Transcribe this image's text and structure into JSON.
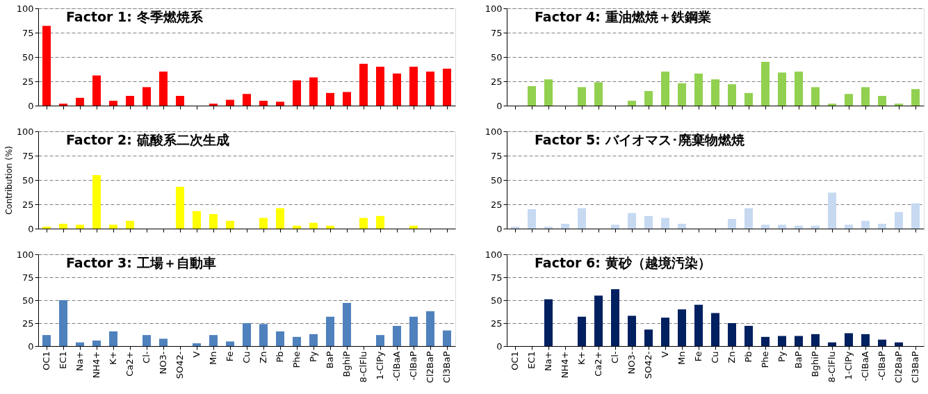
{
  "chart_data": [
    {
      "type": "bar",
      "title": "Factor 1: 冬季燃焼系",
      "categories": [
        "OC1",
        "EC1",
        "Na+",
        "NH4+",
        "K+",
        "Ca2+",
        "Cl-",
        "NO3-",
        "SO42-",
        "V",
        "Mn",
        "Fe",
        "Cu",
        "Zn",
        "Pb",
        "Phe",
        "Py",
        "BaP",
        "BghiP",
        "8-ClFlu",
        "1-ClPy",
        "-ClBaA",
        "-ClBaP",
        "Cl2BaP",
        "Cl3BaP"
      ],
      "series": [
        {
          "color": "#ff0000",
          "values": [
            82,
            2,
            8,
            31,
            5,
            10,
            19,
            35,
            10,
            0,
            2,
            6,
            12,
            5,
            4,
            26,
            29,
            13,
            14,
            43,
            40,
            33,
            40,
            35,
            38
          ]
        }
      ],
      "ylim": [
        0,
        100
      ],
      "yticks": [
        0,
        25,
        50,
        75,
        100
      ],
      "grid": "y",
      "legend": false,
      "tick_labels": "y"
    },
    {
      "type": "bar",
      "title": "Factor 4: 重油燃焼＋鉄鋼業",
      "categories": [
        "OC1",
        "EC1",
        "Na+",
        "NH4+",
        "K+",
        "Ca2+",
        "Cl-",
        "NO3-",
        "SO42-",
        "V",
        "Mn",
        "Fe",
        "Cu",
        "Zn",
        "Pb",
        "Phe",
        "Py",
        "BaP",
        "BghiP",
        "8-ClFlu",
        "1-ClPy",
        "-ClBaA",
        "-ClBaP",
        "Cl2BaP",
        "Cl3BaP"
      ],
      "series": [
        {
          "color": "#92d050",
          "values": [
            0,
            20,
            27,
            0,
            19,
            24,
            0,
            5,
            15,
            35,
            23,
            33,
            27,
            22,
            13,
            45,
            34,
            35,
            19,
            2,
            12,
            19,
            10,
            2,
            17
          ]
        }
      ],
      "ylim": [
        0,
        100
      ],
      "yticks": [
        0,
        25,
        50,
        75,
        100
      ],
      "grid": "y",
      "legend": false,
      "tick_labels": "y"
    },
    {
      "type": "bar",
      "title": "Factor 2: 硫酸系二次生成",
      "ylabel": "Contribution (%)",
      "categories": [
        "OC1",
        "EC1",
        "Na+",
        "NH4+",
        "K+",
        "Ca2+",
        "Cl-",
        "NO3-",
        "SO42-",
        "V",
        "Mn",
        "Fe",
        "Cu",
        "Zn",
        "Pb",
        "Phe",
        "Py",
        "BaP",
        "BghiP",
        "8-ClFlu",
        "1-ClPy",
        "-ClBaA",
        "-ClBaP",
        "Cl2BaP",
        "Cl3BaP"
      ],
      "series": [
        {
          "color": "#ffff00",
          "values": [
            2,
            5,
            4,
            55,
            4,
            8,
            0,
            0,
            43,
            18,
            15,
            8,
            0,
            11,
            21,
            3,
            6,
            3,
            0,
            11,
            13,
            0,
            3,
            0,
            0
          ]
        }
      ],
      "ylim": [
        0,
        100
      ],
      "yticks": [
        0,
        25,
        50,
        75,
        100
      ],
      "grid": "y",
      "legend": false,
      "tick_labels": "y"
    },
    {
      "type": "bar",
      "title": "Factor 5: バイオマス･廃棄物燃焼",
      "categories": [
        "OC1",
        "EC1",
        "Na+",
        "NH4+",
        "K+",
        "Ca2+",
        "Cl-",
        "NO3-",
        "SO42-",
        "V",
        "Mn",
        "Fe",
        "Cu",
        "Zn",
        "Pb",
        "Phe",
        "Py",
        "BaP",
        "BghiP",
        "8-ClFlu",
        "1-ClPy",
        "-ClBaA",
        "-ClBaP",
        "Cl2BaP",
        "Cl3BaP"
      ],
      "series": [
        {
          "color": "#c6d9f1",
          "values": [
            2,
            20,
            2,
            5,
            21,
            0,
            4,
            16,
            13,
            11,
            5,
            0,
            0,
            10,
            21,
            4,
            4,
            3,
            3,
            37,
            4,
            8,
            5,
            17,
            26
          ]
        }
      ],
      "ylim": [
        0,
        100
      ],
      "yticks": [
        0,
        25,
        50,
        75,
        100
      ],
      "grid": "y",
      "legend": false,
      "tick_labels": "y"
    },
    {
      "type": "bar",
      "title": "Factor 3: 工場＋自動車",
      "categories": [
        "OC1",
        "EC1",
        "Na+",
        "NH4+",
        "K+",
        "Ca2+",
        "Cl-",
        "NO3-",
        "SO42-",
        "V",
        "Mn",
        "Fe",
        "Cu",
        "Zn",
        "Pb",
        "Phe",
        "Py",
        "BaP",
        "BghiP",
        "8-ClFlu",
        "1-ClPy",
        "-ClBaA",
        "-ClBaP",
        "Cl2BaP",
        "Cl3BaP"
      ],
      "series": [
        {
          "color": "#4f81bd",
          "values": [
            12,
            50,
            4,
            6,
            16,
            0,
            12,
            8,
            0,
            3,
            12,
            5,
            25,
            24,
            16,
            10,
            13,
            32,
            47,
            0,
            12,
            22,
            32,
            38,
            17
          ]
        }
      ],
      "ylim": [
        0,
        100
      ],
      "yticks": [
        0,
        25,
        50,
        75,
        100
      ],
      "grid": "y",
      "legend": false
    },
    {
      "type": "bar",
      "title": "Factor 6: 黄砂（越境汚染）",
      "categories": [
        "OC1",
        "EC1",
        "Na+",
        "NH4+",
        "K+",
        "Ca2+",
        "Cl-",
        "NO3-",
        "SO42-",
        "V",
        "Mn",
        "Fe",
        "Cu",
        "Zn",
        "Pb",
        "Phe",
        "Py",
        "BaP",
        "BghiP",
        "8-ClFlu",
        "1-ClPy",
        "-ClBaA",
        "-ClBaP",
        "Cl2BaP",
        "Cl3BaP"
      ],
      "series": [
        {
          "color": "#002060",
          "values": [
            0,
            0,
            51,
            0,
            32,
            55,
            62,
            33,
            18,
            31,
            40,
            45,
            36,
            25,
            22,
            10,
            11,
            11,
            13,
            4,
            14,
            13,
            7,
            4,
            0
          ]
        }
      ],
      "ylim": [
        0,
        100
      ],
      "yticks": [
        0,
        25,
        50,
        75,
        100
      ],
      "grid": "y",
      "legend": false
    }
  ]
}
